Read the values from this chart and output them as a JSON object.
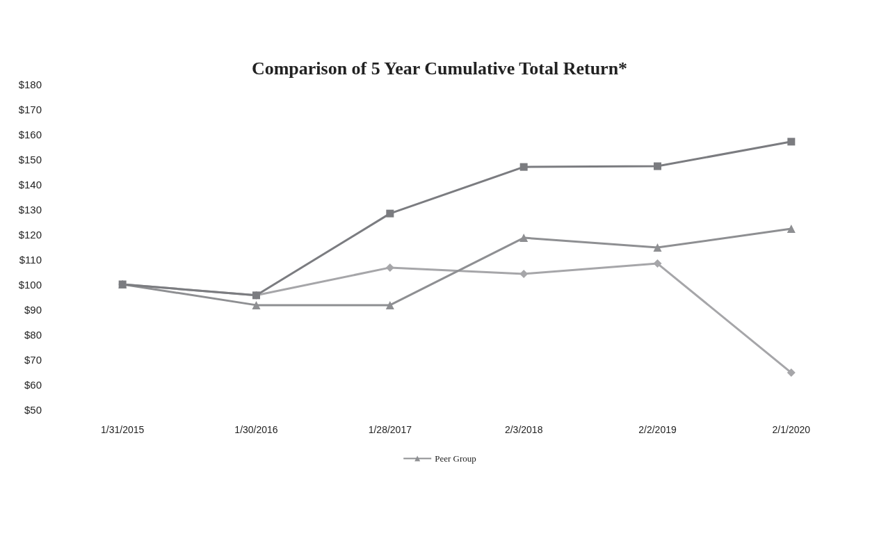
{
  "chart_data": {
    "type": "line",
    "title": "Comparison of 5 Year Cumulative Total Return*",
    "categories": [
      "1/31/2015",
      "1/30/2016",
      "1/28/2017",
      "2/3/2018",
      "2/2/2019",
      "2/1/2020"
    ],
    "series": [
      {
        "color": "#a6a6a9",
        "marker": "diamond",
        "values": [
          100,
          95.6,
          106.7,
          104.2,
          108.3,
          64.7
        ]
      },
      {
        "name": "Peer Group",
        "color": "#8e8f92",
        "marker": "triangle",
        "values": [
          100,
          91.7,
          91.7,
          118.6,
          114.7,
          122.2
        ]
      },
      {
        "color": "#7b7c80",
        "marker": "square",
        "values": [
          100,
          95.6,
          128.3,
          146.9,
          147.2,
          157
        ]
      }
    ],
    "ylim": [
      50,
      180
    ],
    "yticks": [
      {
        "value": 50,
        "label": "$50"
      },
      {
        "value": 60,
        "label": "$60"
      },
      {
        "value": 70,
        "label": "$70"
      },
      {
        "value": 80,
        "label": "$80"
      },
      {
        "value": 90,
        "label": "$90"
      },
      {
        "value": 100,
        "label": "$100"
      },
      {
        "value": 110,
        "label": "$110"
      },
      {
        "value": 120,
        "label": "$120"
      },
      {
        "value": 130,
        "label": "$130"
      },
      {
        "value": 140,
        "label": "$140"
      },
      {
        "value": 150,
        "label": "$150"
      },
      {
        "value": 160,
        "label": "$160"
      },
      {
        "value": 170,
        "label": "$170"
      },
      {
        "value": 180,
        "label": "$180"
      }
    ],
    "grid": false,
    "legend": "bottom"
  }
}
